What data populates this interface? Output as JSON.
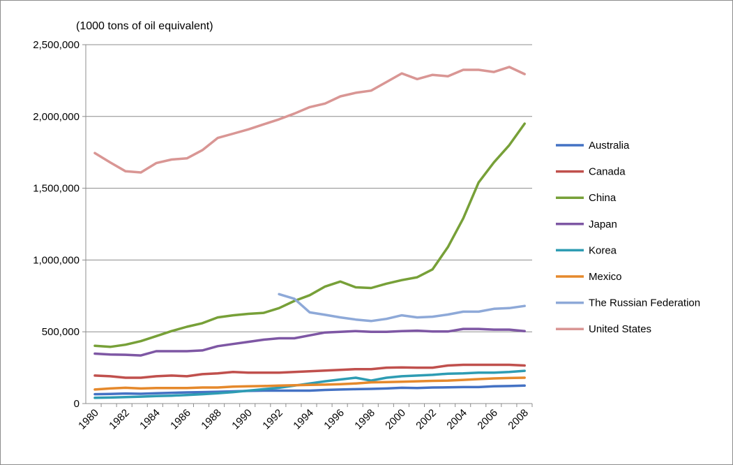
{
  "chart_data": {
    "type": "line",
    "ylabel": "(1000 tons of  oil equivalent)",
    "ylim": [
      0,
      2500000
    ],
    "y_ticks": [
      0,
      500000,
      1000000,
      1500000,
      2000000,
      2500000
    ],
    "y_tick_labels": [
      "0",
      "500,000",
      "1,000,000",
      "1,500,000",
      "2,000,000",
      "2,500,000"
    ],
    "x": [
      1980,
      1981,
      1982,
      1983,
      1984,
      1985,
      1986,
      1987,
      1988,
      1989,
      1990,
      1991,
      1992,
      1993,
      1994,
      1995,
      1996,
      1997,
      1998,
      1999,
      2000,
      2001,
      2002,
      2003,
      2004,
      2005,
      2006,
      2007,
      2008
    ],
    "x_tick_labels": [
      "1980",
      "1982",
      "1984",
      "1986",
      "1988",
      "1990",
      "1992",
      "1994",
      "1996",
      "1998",
      "2000",
      "2002",
      "2004",
      "2006",
      "2008"
    ],
    "grid": "horizontal",
    "legend": "right",
    "series": [
      {
        "name": "Australia",
        "color": "#4472C4",
        "values": [
          65000,
          67000,
          70000,
          68000,
          72000,
          75000,
          78000,
          80000,
          82000,
          85000,
          88000,
          90000,
          90000,
          90000,
          90000,
          95000,
          98000,
          100000,
          102000,
          105000,
          110000,
          108000,
          112000,
          113000,
          115000,
          115000,
          120000,
          122000,
          125000
        ]
      },
      {
        "name": "Canada",
        "color": "#C0504D",
        "values": [
          195000,
          190000,
          180000,
          180000,
          190000,
          195000,
          190000,
          205000,
          210000,
          220000,
          215000,
          215000,
          215000,
          220000,
          225000,
          230000,
          235000,
          240000,
          240000,
          250000,
          252000,
          250000,
          250000,
          265000,
          270000,
          270000,
          270000,
          270000,
          265000
        ]
      },
      {
        "name": "China",
        "color": "#77A038",
        "values": [
          402000,
          395000,
          410000,
          435000,
          470000,
          505000,
          535000,
          560000,
          600000,
          615000,
          625000,
          632000,
          665000,
          715000,
          755000,
          815000,
          850000,
          810000,
          805000,
          835000,
          860000,
          880000,
          935000,
          1090000,
          1290000,
          1540000,
          1680000,
          1800000,
          1950000
        ]
      },
      {
        "name": "Japan",
        "color": "#7E57A4",
        "values": [
          348000,
          342000,
          340000,
          335000,
          365000,
          365000,
          365000,
          370000,
          400000,
          415000,
          430000,
          445000,
          455000,
          455000,
          475000,
          495000,
          500000,
          505000,
          500000,
          500000,
          505000,
          508000,
          502000,
          502000,
          520000,
          520000,
          515000,
          515000,
          505000
        ]
      },
      {
        "name": "Korea",
        "color": "#2E9CB3",
        "values": [
          40000,
          42000,
          45000,
          48000,
          52000,
          55000,
          60000,
          65000,
          72000,
          80000,
          90000,
          100000,
          110000,
          125000,
          140000,
          155000,
          168000,
          180000,
          160000,
          180000,
          190000,
          195000,
          200000,
          208000,
          210000,
          215000,
          215000,
          220000,
          228000
        ]
      },
      {
        "name": "Mexico",
        "color": "#E5892C",
        "values": [
          98000,
          105000,
          110000,
          105000,
          108000,
          108000,
          108000,
          112000,
          112000,
          118000,
          120000,
          122000,
          125000,
          128000,
          130000,
          132000,
          135000,
          140000,
          148000,
          150000,
          152000,
          155000,
          158000,
          160000,
          165000,
          170000,
          175000,
          178000,
          180000
        ]
      },
      {
        "name": "The Russian Federation",
        "color": "#8EA9D8",
        "values": [
          null,
          null,
          null,
          null,
          null,
          null,
          null,
          null,
          null,
          null,
          null,
          null,
          762000,
          730000,
          635000,
          618000,
          600000,
          585000,
          575000,
          590000,
          615000,
          600000,
          605000,
          620000,
          640000,
          640000,
          660000,
          665000,
          680000
        ]
      },
      {
        "name": "United States",
        "color": "#D99694",
        "values": [
          1745000,
          1680000,
          1618000,
          1610000,
          1675000,
          1700000,
          1708000,
          1765000,
          1850000,
          1880000,
          1910000,
          1945000,
          1980000,
          2020000,
          2065000,
          2090000,
          2140000,
          2165000,
          2180000,
          2240000,
          2300000,
          2260000,
          2290000,
          2280000,
          2325000,
          2325000,
          2310000,
          2345000,
          2295000
        ]
      }
    ]
  }
}
